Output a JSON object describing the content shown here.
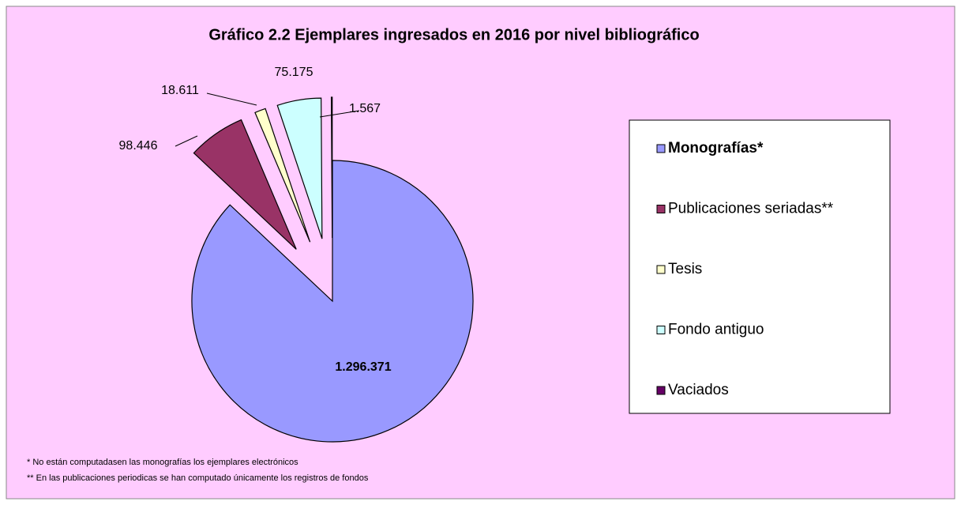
{
  "chart_data": {
    "type": "pie",
    "title": "Gráfico 2.2 Ejemplares ingresados en 2016 por nivel bibliográfico",
    "categories": [
      "Monografías*",
      "Publicaciones seriadas**",
      "Tesis",
      "Fondo antiguo",
      "Vaciados"
    ],
    "values": [
      1296371,
      98446,
      18611,
      75175,
      1567
    ],
    "value_labels": [
      "1.296.371",
      "98.446",
      "18.611",
      "75.175",
      "1.567"
    ],
    "colors": [
      "#9999ff",
      "#993366",
      "#ffffcc",
      "#ccffff",
      "#660066"
    ],
    "legend": "right",
    "footnotes": [
      "*  No están computadasen las monografías los ejemplares electrónicos",
      "** En las  publicaciones periodicas se han computado únicamente los registros de fondos"
    ]
  }
}
